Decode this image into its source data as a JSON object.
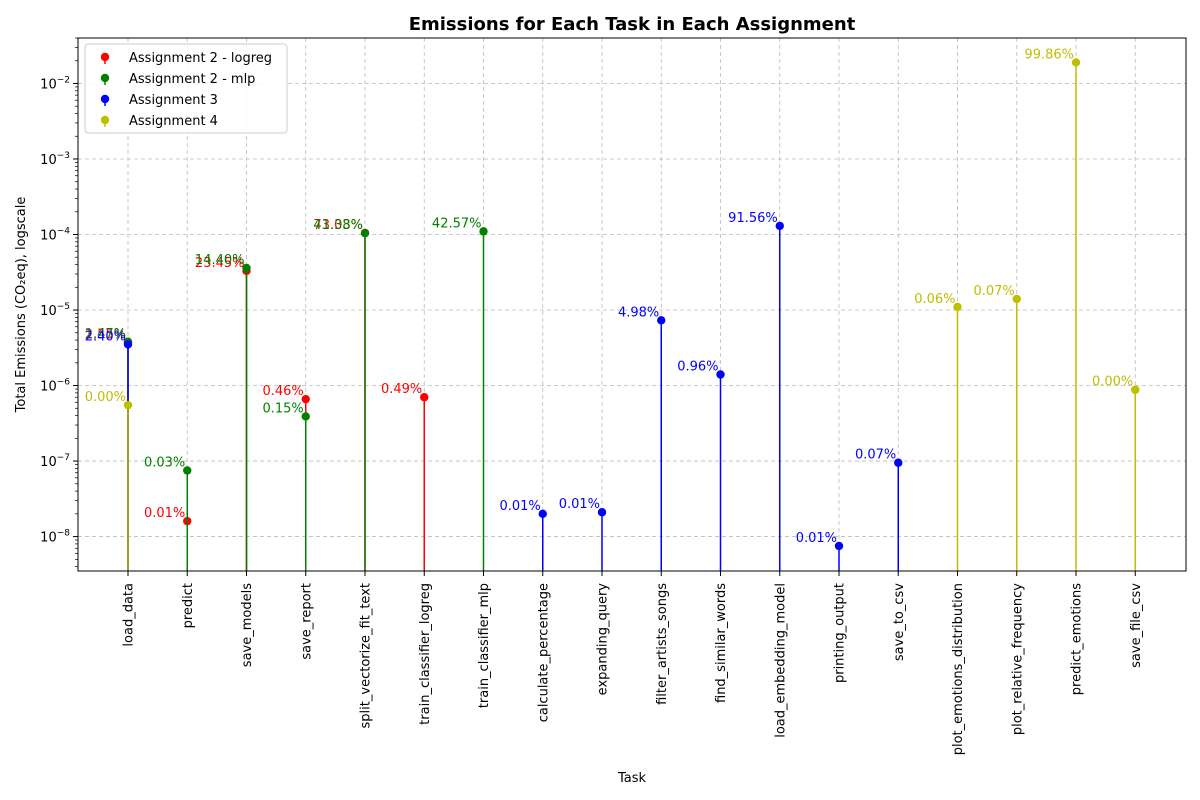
{
  "chart_data": {
    "type": "stem",
    "title": "Emissions for Each Task in Each Assignment",
    "xlabel": "Task",
    "ylabel": "Total Emissions (CO₂eq), logscale",
    "yscale": "log",
    "ylim": [
      3.5e-09,
      0.04
    ],
    "yticks": [
      {
        "value": 1e-08,
        "base": "10",
        "exp": "−8"
      },
      {
        "value": 1e-07,
        "base": "10",
        "exp": "−7"
      },
      {
        "value": 1e-06,
        "base": "10",
        "exp": "−6"
      },
      {
        "value": 1e-05,
        "base": "10",
        "exp": "−5"
      },
      {
        "value": 0.0001,
        "base": "10",
        "exp": "−4"
      },
      {
        "value": 0.001,
        "base": "10",
        "exp": "−3"
      },
      {
        "value": 0.01,
        "base": "10",
        "exp": "−2"
      }
    ],
    "grid": true,
    "legend_position": "top-left",
    "categories": [
      "load_data",
      "predict",
      "save_models",
      "save_report",
      "split_vectorize_fit_text",
      "train_classifier_logreg",
      "train_classifier_mlp",
      "calculate_percentage",
      "expanding_query",
      "filter_artists_songs",
      "find_similar_words",
      "load_embedding_model",
      "printing_output",
      "save_to_csv",
      "plot_emotions_distribution",
      "plot_relative_frequency",
      "predict_emotions",
      "save_file_csv"
    ],
    "series": [
      {
        "name": "Assignment 2 - logreg",
        "color": "#ff0000",
        "points": [
          {
            "task": "load_data",
            "value": 3.7e-06,
            "label": "2.55%"
          },
          {
            "task": "predict",
            "value": 1.6e-08,
            "label": "0.01%"
          },
          {
            "task": "save_models",
            "value": 3.3e-05,
            "label": "23.45%"
          },
          {
            "task": "save_report",
            "value": 6.6e-07,
            "label": "0.46%"
          },
          {
            "task": "split_vectorize_fit_text",
            "value": 0.000105,
            "label": "73.03%"
          },
          {
            "task": "train_classifier_logreg",
            "value": 7e-07,
            "label": "0.49%"
          }
        ]
      },
      {
        "name": "Assignment 2 - mlp",
        "color": "#008000",
        "points": [
          {
            "task": "load_data",
            "value": 3.8e-06,
            "label": "1.47%"
          },
          {
            "task": "predict",
            "value": 7.5e-08,
            "label": "0.03%"
          },
          {
            "task": "save_models",
            "value": 3.6e-05,
            "label": "14.40%"
          },
          {
            "task": "save_report",
            "value": 3.9e-07,
            "label": "0.15%"
          },
          {
            "task": "split_vectorize_fit_text",
            "value": 0.000104,
            "label": "41.38%"
          },
          {
            "task": "train_classifier_mlp",
            "value": 0.00011,
            "label": "42.57%"
          }
        ]
      },
      {
        "name": "Assignment 3",
        "color": "#0000ff",
        "points": [
          {
            "task": "load_data",
            "value": 3.5e-06,
            "label": "2.40%"
          },
          {
            "task": "calculate_percentage",
            "value": 2e-08,
            "label": "0.01%"
          },
          {
            "task": "expanding_query",
            "value": 2.1e-08,
            "label": "0.01%"
          },
          {
            "task": "filter_artists_songs",
            "value": 7.3e-06,
            "label": "4.98%"
          },
          {
            "task": "find_similar_words",
            "value": 1.4e-06,
            "label": "0.96%"
          },
          {
            "task": "load_embedding_model",
            "value": 0.00013,
            "label": "91.56%"
          },
          {
            "task": "printing_output",
            "value": 7.5e-09,
            "label": "0.01%"
          },
          {
            "task": "save_to_csv",
            "value": 9.5e-08,
            "label": "0.07%"
          }
        ]
      },
      {
        "name": "Assignment 4",
        "color": "#bfbf00",
        "points": [
          {
            "task": "load_data",
            "value": 5.5e-07,
            "label": "0.00%"
          },
          {
            "task": "plot_emotions_distribution",
            "value": 1.1e-05,
            "label": "0.06%"
          },
          {
            "task": "plot_relative_frequency",
            "value": 1.4e-05,
            "label": "0.07%"
          },
          {
            "task": "predict_emotions",
            "value": 0.019,
            "label": "99.86%"
          },
          {
            "task": "save_file_csv",
            "value": 8.8e-07,
            "label": "0.00%"
          }
        ]
      }
    ]
  }
}
